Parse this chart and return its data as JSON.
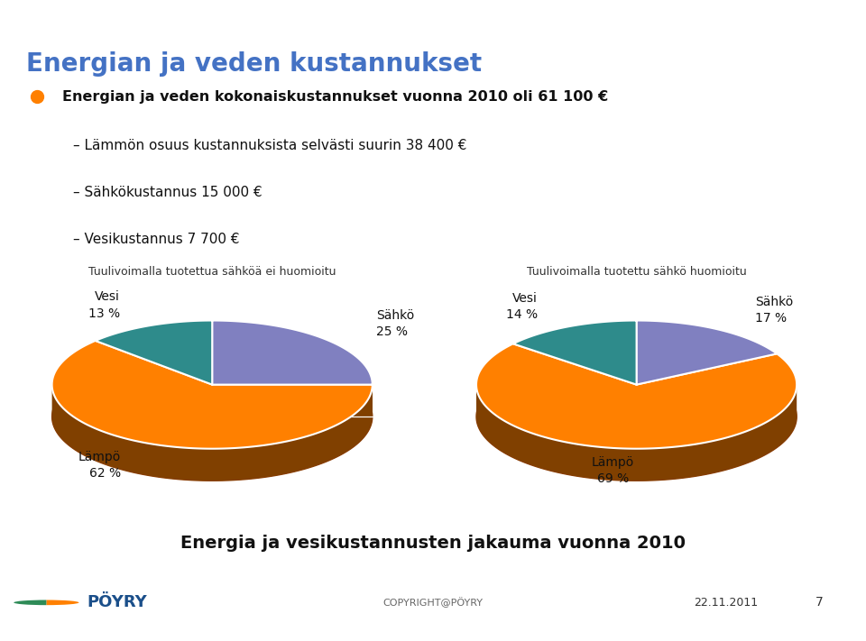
{
  "title": "Energian ja veden kustannukset",
  "bullet_text": "Energian ja veden kokonaiskustannukset vuonna 2010 oli 61 100 €",
  "sub_bullets": [
    "Lämmön osuus kustannuksista selvästi suurin 38 400 €",
    "Sähkökustannus 15 000 €",
    "Vesikustannus 7 700 €"
  ],
  "chart1_title": "Tuulivoimalla tuotettua sähköä ei huomioitu",
  "chart2_title": "Tuulivoimalla tuotettu sähkö huomioitu",
  "chart1_values": [
    62,
    25,
    13
  ],
  "chart2_values": [
    69,
    17,
    14
  ],
  "chart1_names": [
    "Lämpö",
    "Sähkö",
    "Vesi"
  ],
  "chart1_pcts": [
    "62 %",
    "25 %",
    "13 %"
  ],
  "chart2_names": [
    "Lämpö",
    "Sähkö",
    "Vesi"
  ],
  "chart2_pcts": [
    "69 %",
    "17 %",
    "14 %"
  ],
  "slice_colors": [
    "#FF8000",
    "#8080C0",
    "#2E8B8B"
  ],
  "depth_color": "#8B3A00",
  "bottom_title": "Energia ja vesikustannusten jakauma vuonna 2010",
  "footer_copyright": "COPYRIGHT@PÖYRY",
  "footer_date": "22.11.2011",
  "footer_page": "7",
  "bg_color": "#FFFFFF",
  "title_color": "#4472C4",
  "top_bar_color": "#F0A000"
}
